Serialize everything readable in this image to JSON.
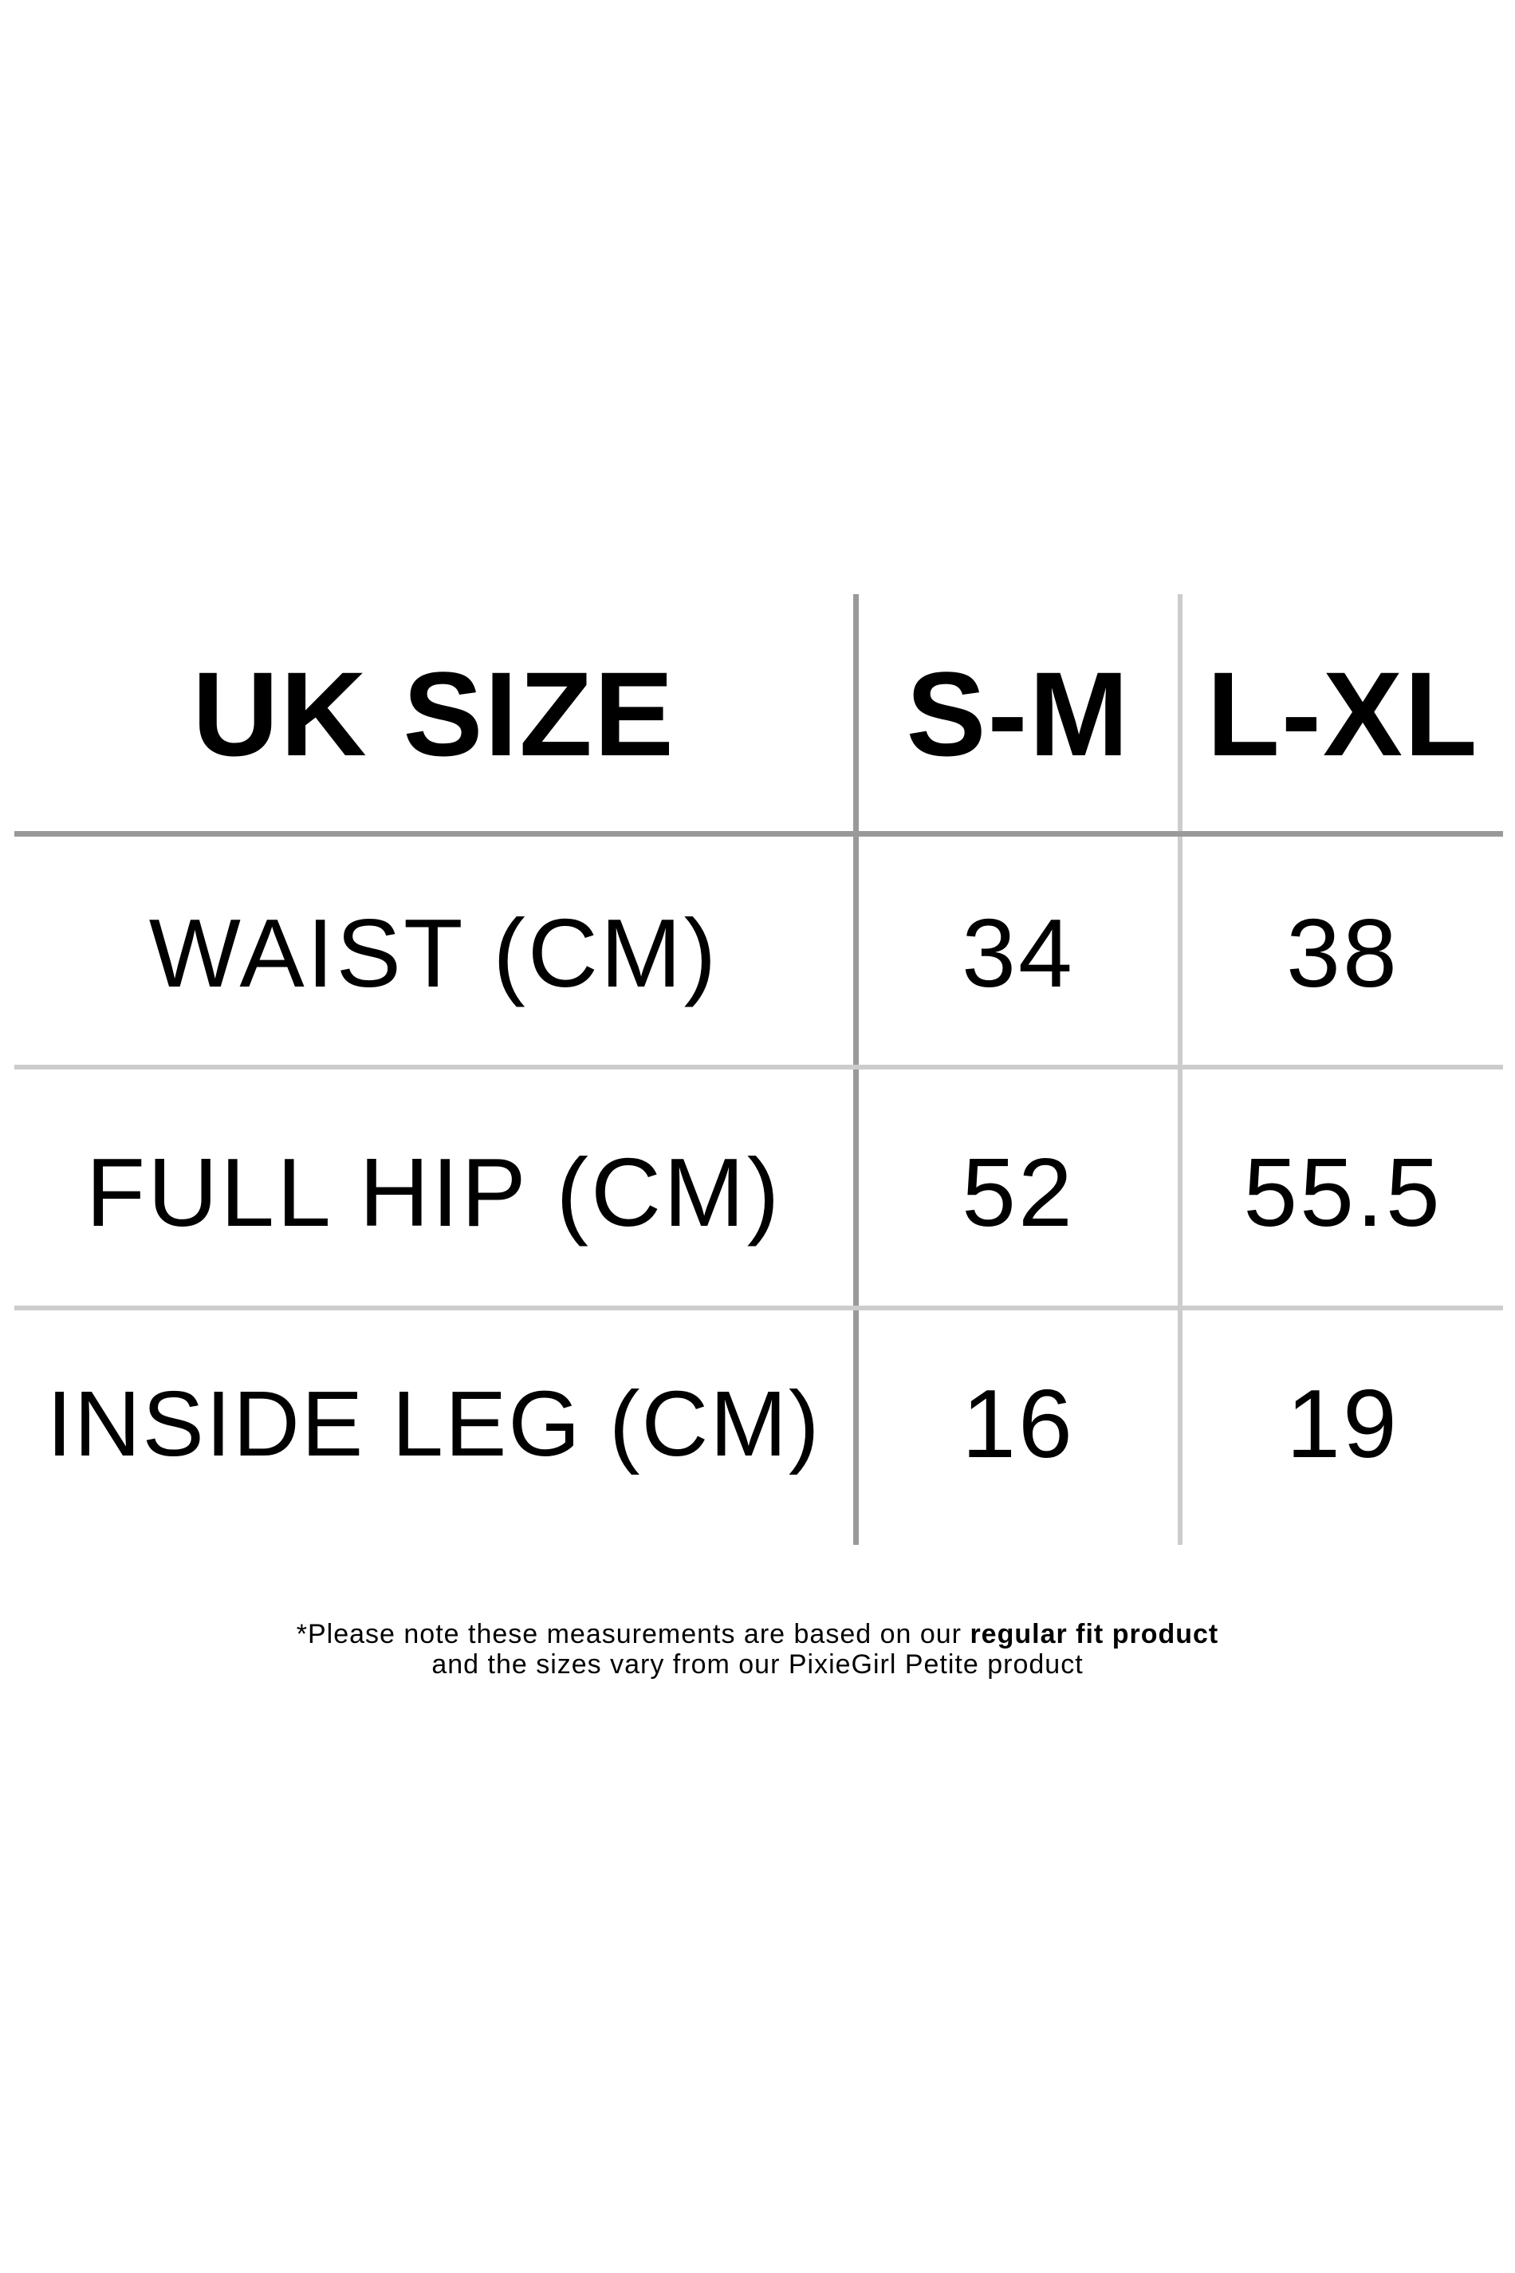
{
  "table": {
    "headers": [
      "UK SIZE",
      "S-M",
      "L-XL"
    ],
    "rows": [
      {
        "label": "WAIST (CM)",
        "values": [
          "34",
          "38"
        ]
      },
      {
        "label": "FULL HIP (CM)",
        "values": [
          "52",
          "55.5"
        ]
      },
      {
        "label": "INSIDE LEG (CM)",
        "values": [
          "16",
          "19"
        ]
      }
    ],
    "colors": {
      "primary_divider": "#999999",
      "secondary_divider": "#cccccc",
      "text": "#000000"
    }
  },
  "footnote": {
    "line1_prefix": "*Please note these measurements are based on our ",
    "line1_bold": "regular fit product",
    "line2": "and the sizes vary from our PixieGirl Petite product"
  }
}
